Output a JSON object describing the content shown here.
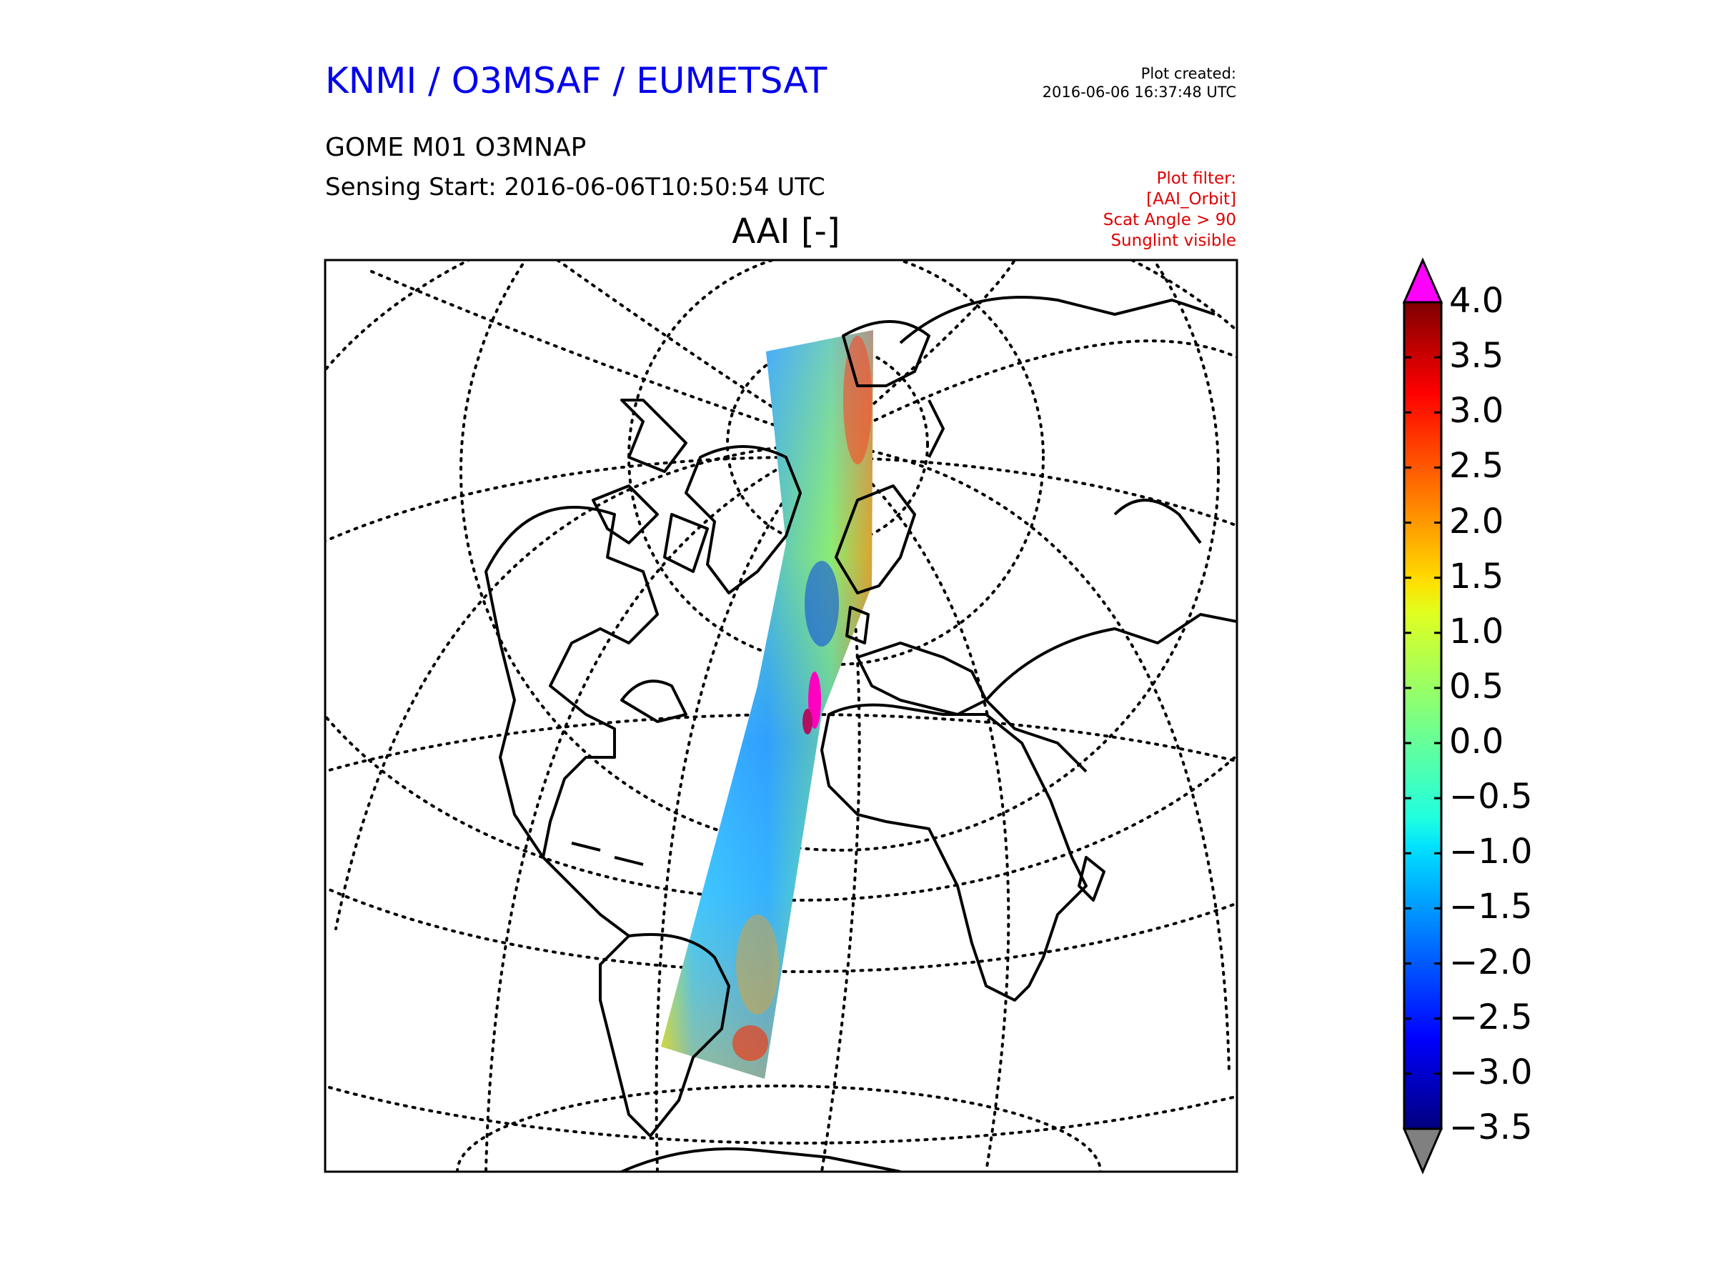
{
  "header": {
    "organization": "KNMI / O3MSAF / EUMETSAT",
    "plot_created_label": "Plot created:",
    "plot_created_time": "2016-06-06 16:37:48 UTC",
    "product": "GOME M01 O3MNAP",
    "sensing_start": "Sensing Start: 2016-06-06T10:50:54 UTC",
    "variable_title": "AAI [-]"
  },
  "filter": {
    "lines": [
      "Plot filter:",
      "[AAI_Orbit]",
      "Scat Angle > 90",
      "Sunglint visible"
    ]
  },
  "colorbar": {
    "colormap": "jet",
    "min": -3.5,
    "max": 4.0,
    "tick_labels": [
      "4.0",
      "3.5",
      "3.0",
      "2.5",
      "2.0",
      "1.5",
      "1.0",
      "0.5",
      "0.0",
      "−0.5",
      "−1.0",
      "−1.5",
      "−2.0",
      "−2.5",
      "−3.0",
      "−3.5"
    ],
    "extend_high_color": "#ff00ff",
    "extend_low_color": "#808080"
  },
  "map": {
    "projection": "orthographic",
    "graticule_style": "dotted",
    "coastline_color": "#000000"
  }
}
